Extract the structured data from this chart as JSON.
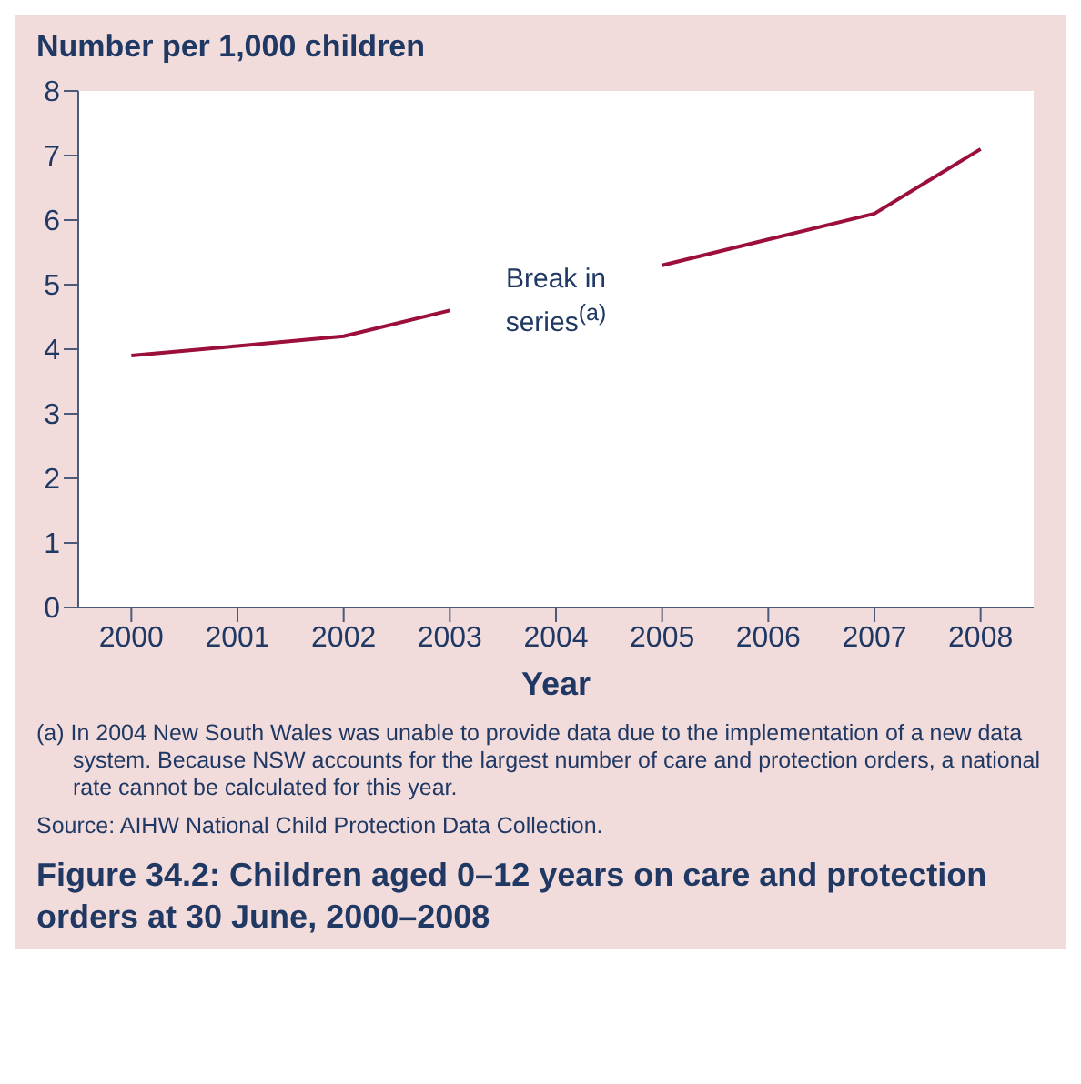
{
  "chart_data": {
    "type": "line",
    "title": "Figure 34.2: Children aged 0–12 years on care and protection orders at 30 June, 2000–2008",
    "xlabel": "Year",
    "ylabel": "Number per 1,000 children",
    "categories": [
      "2000",
      "2001",
      "2002",
      "2003",
      "2004",
      "2005",
      "2006",
      "2007",
      "2008"
    ],
    "series": [
      {
        "color": "#9b0f3a",
        "values": [
          3.9,
          4.05,
          4.2,
          4.6,
          null,
          5.3,
          5.7,
          6.1,
          7.1
        ]
      }
    ],
    "ylim": [
      0,
      8
    ],
    "yticks": [
      0,
      1,
      2,
      3,
      4,
      5,
      6,
      7,
      8
    ],
    "grid": false,
    "legend": false,
    "annotations": [
      "Break in series$^{(a)}$",
      "(a) In 2004 New South Wales was unable to provide data due to the implementation of a new data system. Because NSW accounts for the largest number of care and protection orders, a national rate cannot be calculated for this year.",
      "Source: AIHW National Child Protection Data Collection."
    ]
  }
}
